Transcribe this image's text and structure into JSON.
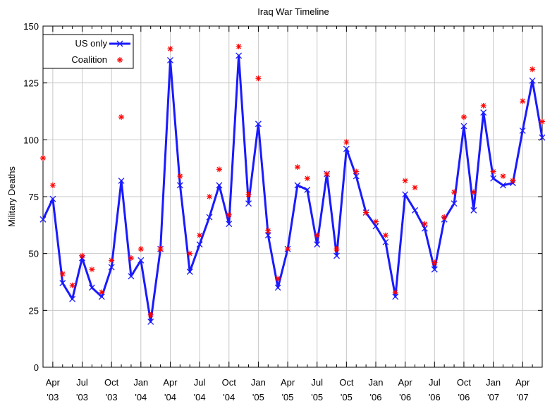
{
  "chart_data": {
    "type": "line",
    "title": "Iraq War Timeline",
    "ylabel": "Military Deaths",
    "xlabel": "",
    "ylim": [
      0,
      150
    ],
    "y_ticks": [
      0,
      25,
      50,
      75,
      100,
      125,
      150
    ],
    "x_tick_labels": [
      {
        "month": "Apr",
        "year": "'03"
      },
      {
        "month": "Jul",
        "year": "'03"
      },
      {
        "month": "Oct",
        "year": "'03"
      },
      {
        "month": "Jan",
        "year": "'04"
      },
      {
        "month": "Apr",
        "year": "'04"
      },
      {
        "month": "Jul",
        "year": "'04"
      },
      {
        "month": "Oct",
        "year": "'04"
      },
      {
        "month": "Jan",
        "year": "'05"
      },
      {
        "month": "Apr",
        "year": "'05"
      },
      {
        "month": "Jul",
        "year": "'05"
      },
      {
        "month": "Oct",
        "year": "'05"
      },
      {
        "month": "Jan",
        "year": "'06"
      },
      {
        "month": "Apr",
        "year": "'06"
      },
      {
        "month": "Jul",
        "year": "'06"
      },
      {
        "month": "Oct",
        "year": "'06"
      },
      {
        "month": "Jan",
        "year": "'07"
      },
      {
        "month": "Apr",
        "year": "'07"
      }
    ],
    "x": [
      "2003-03",
      "2003-04",
      "2003-05",
      "2003-06",
      "2003-07",
      "2003-08",
      "2003-09",
      "2003-10",
      "2003-11",
      "2003-12",
      "2004-01",
      "2004-02",
      "2004-03",
      "2004-04",
      "2004-05",
      "2004-06",
      "2004-07",
      "2004-08",
      "2004-09",
      "2004-10",
      "2004-11",
      "2004-12",
      "2005-01",
      "2005-02",
      "2005-03",
      "2005-04",
      "2005-05",
      "2005-06",
      "2005-07",
      "2005-08",
      "2005-09",
      "2005-10",
      "2005-11",
      "2005-12",
      "2006-01",
      "2006-02",
      "2006-03",
      "2006-04",
      "2006-05",
      "2006-06",
      "2006-07",
      "2006-08",
      "2006-09",
      "2006-10",
      "2006-11",
      "2006-12",
      "2007-01",
      "2007-02",
      "2007-03",
      "2007-04",
      "2007-05",
      "2007-06"
    ],
    "grid": true,
    "legend_position": "top-left",
    "colors": {
      "us": "#1a1aff",
      "coalition": "#ff0000"
    },
    "series": [
      {
        "name": "US only",
        "style": "line-with-x-markers",
        "values": [
          65,
          74,
          37,
          30,
          48,
          35,
          31,
          44,
          82,
          40,
          47,
          20,
          52,
          135,
          80,
          42,
          54,
          66,
          80,
          63,
          137,
          72,
          107,
          58,
          35,
          52,
          80,
          78,
          54,
          85,
          49,
          96,
          84,
          68,
          62,
          55,
          31,
          76,
          69,
          61,
          43,
          65,
          72,
          106,
          69,
          112,
          83,
          80,
          81,
          104,
          126,
          101
        ]
      },
      {
        "name": "Coalition",
        "style": "star-markers",
        "values": [
          92,
          80,
          41,
          36,
          49,
          43,
          33,
          47,
          110,
          48,
          52,
          23,
          52,
          140,
          84,
          50,
          58,
          75,
          87,
          67,
          141,
          76,
          127,
          60,
          39,
          52,
          88,
          83,
          58,
          85,
          52,
          99,
          86,
          68,
          64,
          58,
          33,
          82,
          79,
          63,
          46,
          66,
          77,
          110,
          77,
          115,
          86,
          84,
          82,
          117,
          131,
          108
        ]
      }
    ]
  }
}
